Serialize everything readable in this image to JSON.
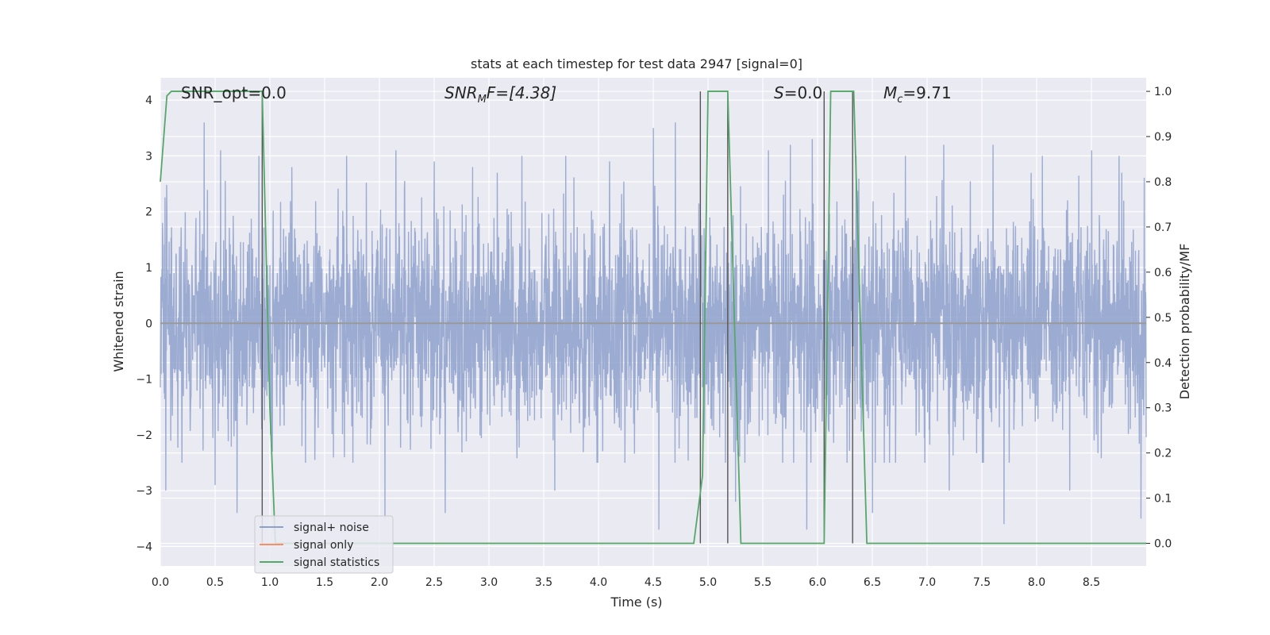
{
  "chart_data": {
    "type": "line",
    "title": "stats at each timestep for test data 2947 [signal=0]",
    "xlabel": "Time (s)",
    "ylabel": "Whitened strain",
    "y2label": "Detection probability/MF",
    "xlim": [
      0,
      9
    ],
    "ylim": [
      -4.35,
      4.4
    ],
    "y2lim": [
      -0.05,
      1.03
    ],
    "xticks": [
      0,
      0.5,
      1,
      1.5,
      2,
      2.5,
      3,
      3.5,
      4,
      4.5,
      5,
      5.5,
      6,
      6.5,
      7,
      7.5,
      8,
      8.5
    ],
    "xtick_labels": [
      "0.0",
      "0.5",
      "1.0",
      "1.5",
      "2.0",
      "2.5",
      "3.0",
      "3.5",
      "4.0",
      "4.5",
      "5.0",
      "5.5",
      "6.0",
      "6.5",
      "7.0",
      "7.5",
      "8.0",
      "8.5"
    ],
    "yticks": [
      -4,
      -3,
      -2,
      -1,
      0,
      1,
      2,
      3,
      4
    ],
    "ytick_labels": [
      "−4",
      "−3",
      "−2",
      "−1",
      "0",
      "1",
      "2",
      "3",
      "4"
    ],
    "y2ticks": [
      0,
      0.1,
      0.2,
      0.3,
      0.4,
      0.5,
      0.6,
      0.7,
      0.8,
      0.9,
      1.0
    ],
    "y2tick_labels": [
      "0.0",
      "0.1",
      "0.2",
      "0.3",
      "0.4",
      "0.5",
      "0.6",
      "0.7",
      "0.8",
      "0.9",
      "1.0"
    ],
    "grid": true,
    "legend_position": "lower-left",
    "annotations": {
      "snr_opt": "SNR_opt=0.0",
      "snr_mf_main": "SNR",
      "snr_mf_sub": "M",
      "snr_mf_rest": "F=[4.38]",
      "s_main": "S",
      "s_rest": "=0.0",
      "mc_main": "M",
      "mc_sub": "c",
      "mc_rest": "=9.71"
    },
    "series": [
      {
        "name": "signal+ noise",
        "color": "#8da0cb",
        "style": "noise",
        "duration": 9,
        "sigma": 0.95,
        "spike_times": [
          0.4,
          0.55,
          0.7,
          0.9,
          1.2,
          1.7,
          2.15,
          2.5,
          2.85,
          3.3,
          3.7,
          4.1,
          4.5,
          4.7,
          5.55,
          5.75,
          5.95,
          6.35,
          6.8,
          7.15,
          7.6,
          8.05,
          8.5,
          8.75
        ],
        "spike_values": [
          3.6,
          3.1,
          3.3,
          3.0,
          2.8,
          3.0,
          3.1,
          2.9,
          2.8,
          3.0,
          3.0,
          2.9,
          3.5,
          3.6,
          3.1,
          3.2,
          3.3,
          3.0,
          3.0,
          3.2,
          3.2,
          3.0,
          3.1,
          3.0
        ],
        "dip_times": [
          0.05,
          0.5,
          0.7,
          2.05,
          2.6,
          3.6,
          4.55,
          5.25,
          5.9,
          6.5,
          7.2,
          7.7,
          8.3,
          8.95
        ],
        "dip_values": [
          -3.0,
          -2.9,
          -3.4,
          -3.5,
          -3.4,
          -3.0,
          -3.7,
          -3.2,
          -3.7,
          -3.4,
          -3.0,
          -3.6,
          -3.0,
          -3.5
        ]
      },
      {
        "name": "signal only",
        "color": "#fc8d62",
        "x": [
          0,
          9
        ],
        "y": [
          0,
          0
        ]
      },
      {
        "name": "signal statistics",
        "color": "#55a868",
        "axis": "right",
        "x": [
          0,
          0.06,
          0.1,
          0.93,
          1.0,
          1.05,
          4.87,
          4.95,
          5.0,
          5.18,
          5.3,
          6.06,
          6.12,
          6.33,
          6.45,
          9
        ],
        "y": [
          0.8,
          0.99,
          1.0,
          1.0,
          0.3,
          0.0,
          0.0,
          0.15,
          1.0,
          1.0,
          0.0,
          0.0,
          1.0,
          1.0,
          0.0,
          0.0
        ]
      }
    ],
    "vlines": [
      0.93,
      4.93,
      5.18,
      6.06,
      6.32
    ],
    "vline_color": "#555555"
  }
}
